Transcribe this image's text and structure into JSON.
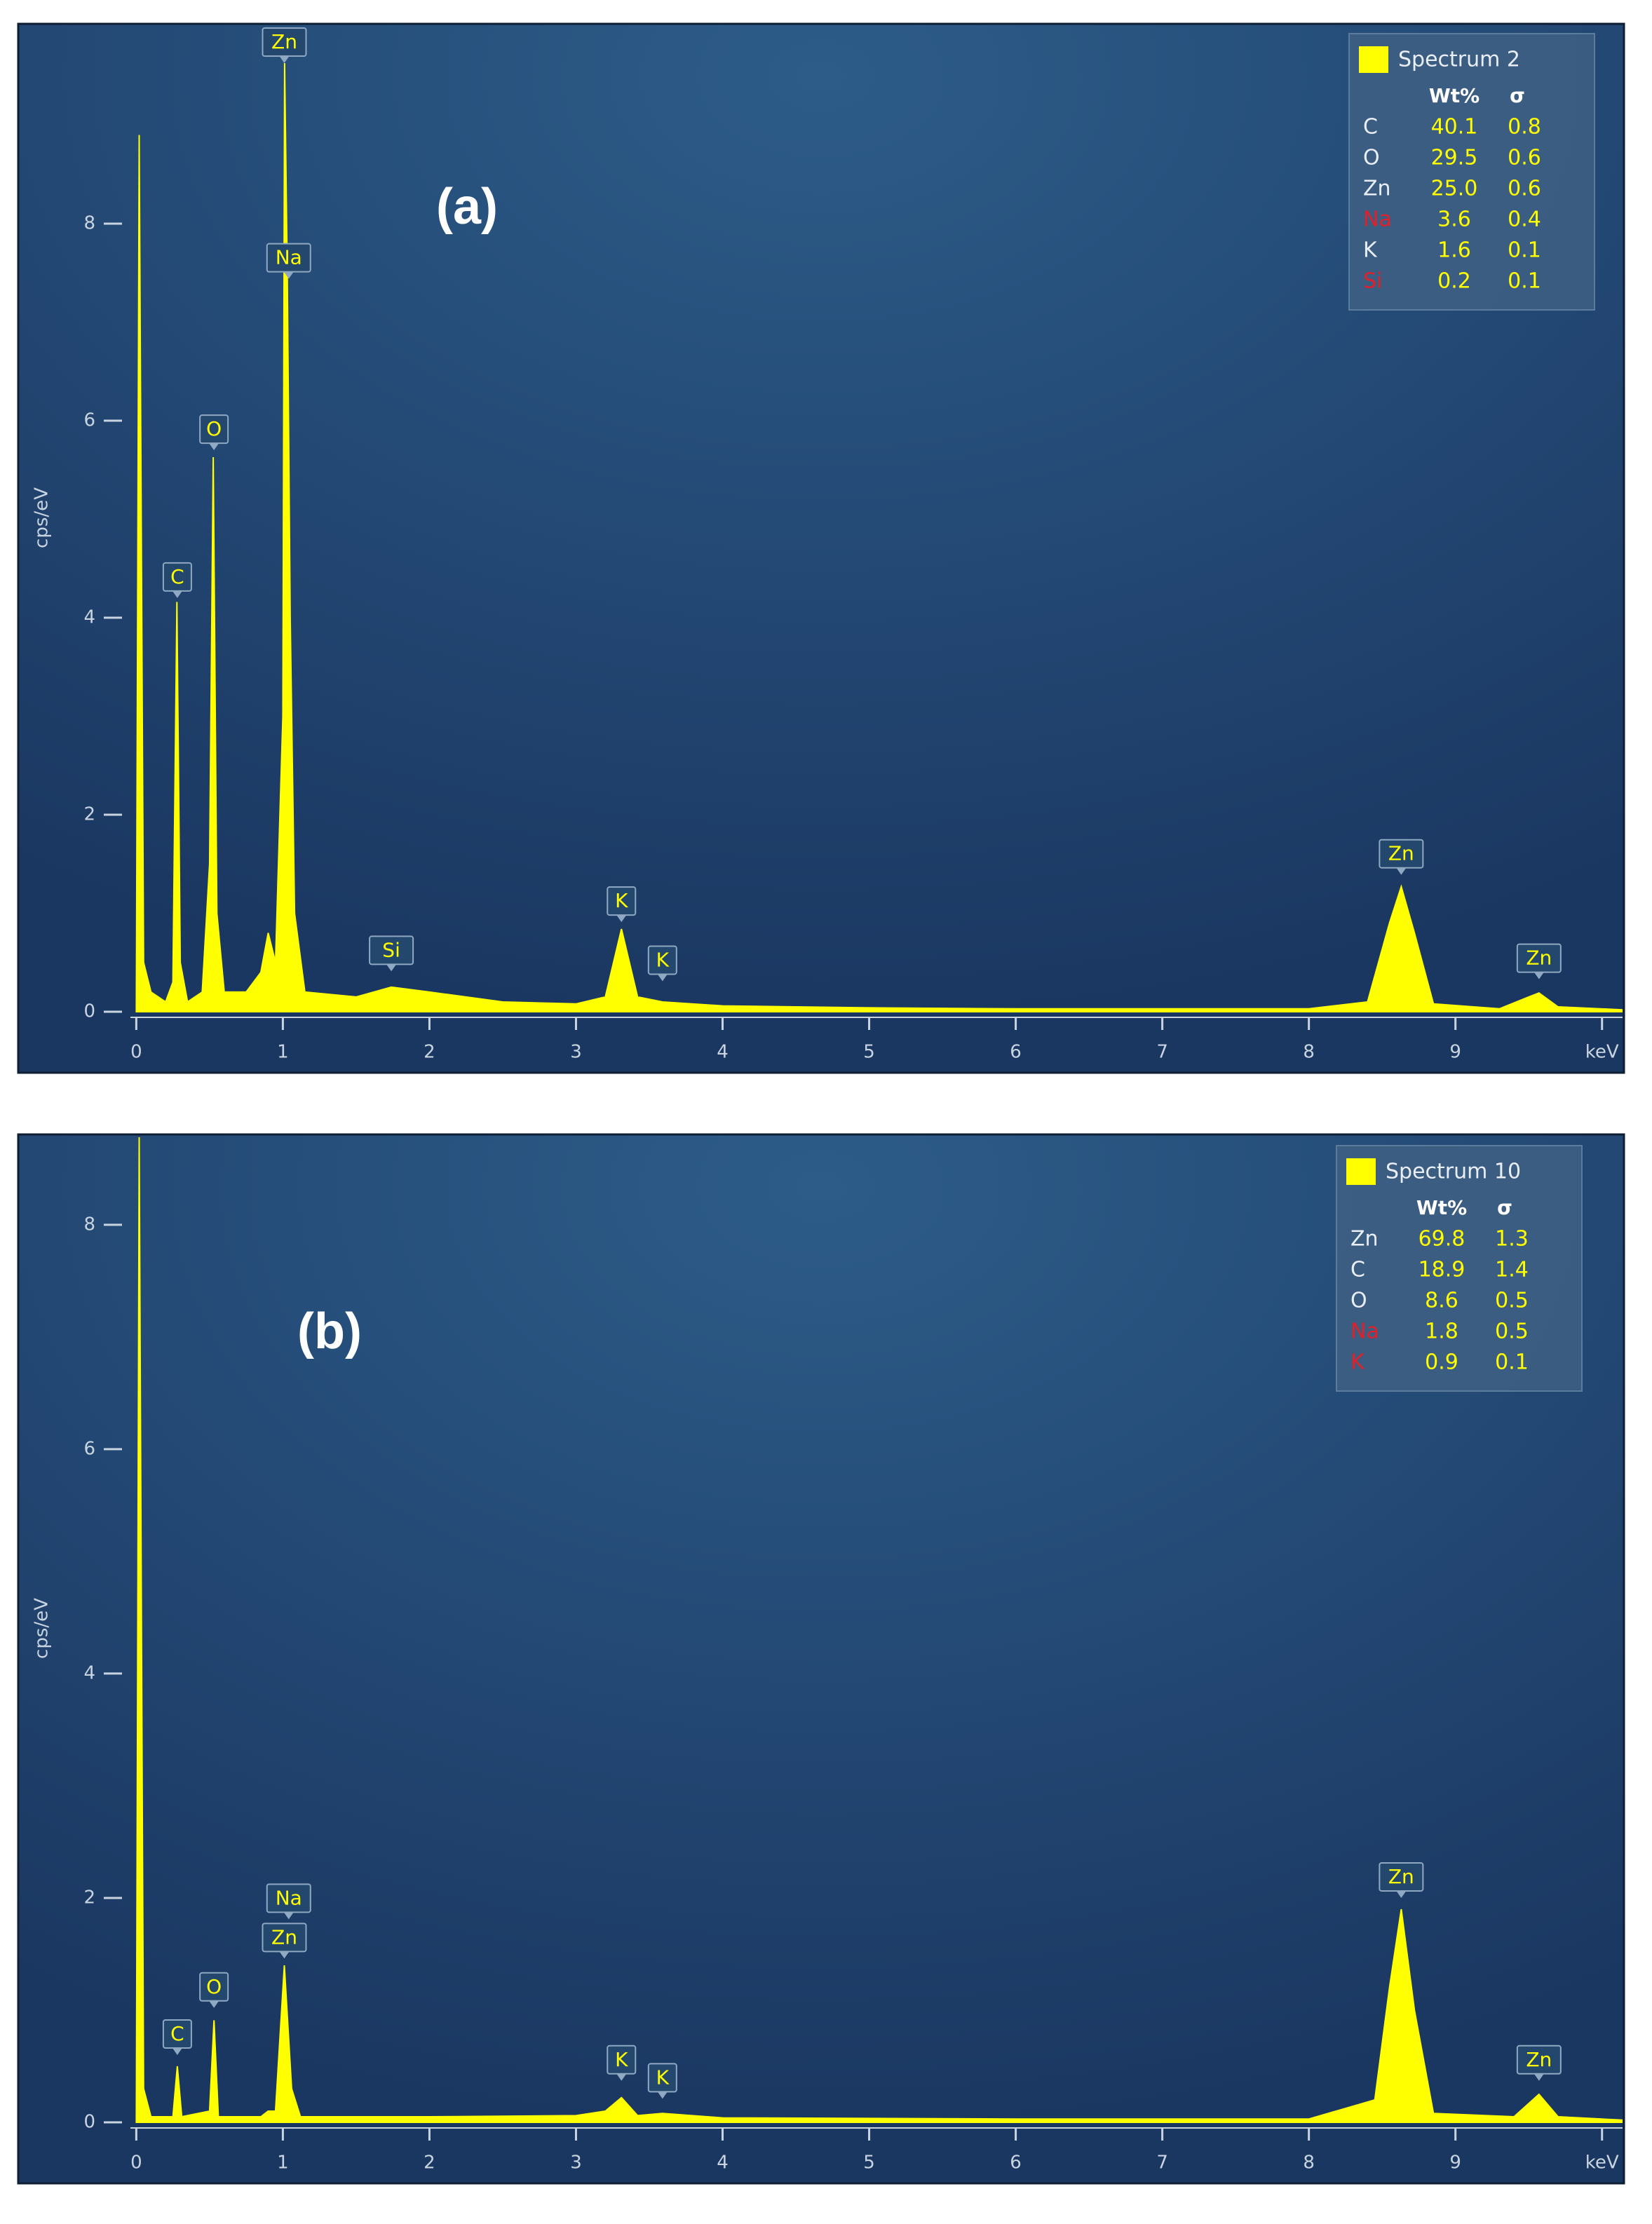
{
  "chart_data": [
    {
      "type": "area",
      "panel_label": "(a)",
      "y_label": "cps/eV",
      "color": "#ffff00",
      "xlim": [
        -0.04,
        10.14
      ],
      "ylim": [
        0,
        10
      ],
      "xticks": [
        0,
        1,
        2,
        3,
        4,
        5,
        6,
        7,
        8,
        9,
        {
          "value": 10,
          "label": "keV"
        }
      ],
      "yticks": [
        0,
        2,
        4,
        6,
        8
      ],
      "x": [
        0,
        0.02,
        0.05,
        0.1,
        0.2,
        0.25,
        0.277,
        0.3,
        0.35,
        0.45,
        0.5,
        0.525,
        0.55,
        0.6,
        0.75,
        0.85,
        0.9,
        0.95,
        1.0,
        1.012,
        1.03,
        1.05,
        1.08,
        1.15,
        1.5,
        1.74,
        2.0,
        2.5,
        3.0,
        3.2,
        3.31,
        3.42,
        3.59,
        4.0,
        5,
        6,
        7,
        8,
        8.4,
        8.55,
        8.63,
        8.72,
        8.85,
        9.3,
        9.5,
        9.57,
        9.7,
        10.14
      ],
      "values": [
        0,
        8.9,
        0.5,
        0.2,
        0.1,
        0.3,
        4.16,
        0.5,
        0.1,
        0.2,
        1.5,
        5.63,
        1.0,
        0.2,
        0.2,
        0.4,
        0.8,
        0.5,
        3.0,
        9.63,
        7.5,
        4.0,
        1.0,
        0.2,
        0.15,
        0.25,
        0.2,
        0.1,
        0.08,
        0.15,
        0.84,
        0.15,
        0.1,
        0.06,
        0.04,
        0.03,
        0.03,
        0.03,
        0.1,
        0.9,
        1.27,
        0.8,
        0.08,
        0.03,
        0.15,
        0.19,
        0.05,
        0.02
      ],
      "annotations": [
        {
          "label": "Zn",
          "x": 1.01,
          "y": 9.63
        },
        {
          "label": "Na",
          "x": 1.04,
          "y": 7.44
        },
        {
          "label": "O",
          "x": 0.53,
          "y": 5.7
        },
        {
          "label": "C",
          "x": 0.28,
          "y": 4.2
        },
        {
          "label": "Si",
          "x": 1.74,
          "y": 0.41
        },
        {
          "label": "K",
          "x": 3.31,
          "y": 0.91
        },
        {
          "label": "K",
          "x": 3.59,
          "y": 0.31
        },
        {
          "label": "Zn",
          "x": 8.63,
          "y": 1.39
        },
        {
          "label": "Zn",
          "x": 9.57,
          "y": 0.33
        }
      ],
      "legend": {
        "name": "Spectrum 2",
        "columns": [
          "Wt%",
          "σ"
        ],
        "rows": [
          {
            "element": "C",
            "wt": "40.1",
            "sigma": "0.8"
          },
          {
            "element": "O",
            "wt": "29.5",
            "sigma": "0.6"
          },
          {
            "element": "Zn",
            "wt": "25.0",
            "sigma": "0.6"
          },
          {
            "element": "Na",
            "wt": "3.6",
            "sigma": "0.4",
            "color": "#e0202a"
          },
          {
            "element": "K",
            "wt": "1.6",
            "sigma": "0.1"
          },
          {
            "element": "Si",
            "wt": "0.2",
            "sigma": "0.1",
            "color": "#e0202a"
          }
        ]
      }
    },
    {
      "type": "area",
      "panel_label": "(b)",
      "y_label": "cps/eV",
      "color": "#ffff00",
      "xlim": [
        -0.04,
        10.14
      ],
      "ylim": [
        0,
        8.78
      ],
      "xticks": [
        0,
        1,
        2,
        3,
        4,
        5,
        6,
        7,
        8,
        9,
        {
          "value": 10,
          "label": "keV"
        }
      ],
      "yticks": [
        0,
        2,
        4,
        6,
        8
      ],
      "x": [
        0,
        0.02,
        0.05,
        0.1,
        0.25,
        0.28,
        0.31,
        0.5,
        0.53,
        0.56,
        0.85,
        0.9,
        0.95,
        1.01,
        1.06,
        1.12,
        2.0,
        3.0,
        3.2,
        3.31,
        3.42,
        3.59,
        4,
        6,
        8,
        8.45,
        8.55,
        8.63,
        8.72,
        8.85,
        9.4,
        9.57,
        9.7,
        10.14
      ],
      "values": [
        0,
        8.78,
        0.3,
        0.05,
        0.05,
        0.5,
        0.05,
        0.1,
        0.91,
        0.05,
        0.05,
        0.1,
        0.1,
        1.4,
        0.3,
        0.05,
        0.05,
        0.06,
        0.1,
        0.22,
        0.06,
        0.08,
        0.04,
        0.03,
        0.03,
        0.2,
        1.2,
        1.9,
        1.0,
        0.08,
        0.05,
        0.25,
        0.05,
        0.02
      ],
      "annotations": [
        {
          "label": "C",
          "x": 0.28,
          "y": 0.6
        },
        {
          "label": "O",
          "x": 0.53,
          "y": 1.02
        },
        {
          "label": "Zn",
          "x": 1.01,
          "y": 1.46
        },
        {
          "label": "Na",
          "x": 1.04,
          "y": 1.81
        },
        {
          "label": "K",
          "x": 3.31,
          "y": 0.37
        },
        {
          "label": "K",
          "x": 3.59,
          "y": 0.21
        },
        {
          "label": "Zn",
          "x": 8.63,
          "y": 2.0
        },
        {
          "label": "Zn",
          "x": 9.57,
          "y": 0.37
        }
      ],
      "legend": {
        "name": "Spectrum 10",
        "columns": [
          "Wt%",
          "σ"
        ],
        "rows": [
          {
            "element": "Zn",
            "wt": "69.8",
            "sigma": "1.3"
          },
          {
            "element": "C",
            "wt": "18.9",
            "sigma": "1.4"
          },
          {
            "element": "O",
            "wt": "8.6",
            "sigma": "0.5"
          },
          {
            "element": "Na",
            "wt": "1.8",
            "sigma": "0.5",
            "color": "#e0202a"
          },
          {
            "element": "K",
            "wt": "0.9",
            "sigma": "0.1",
            "color": "#e0202a"
          }
        ]
      }
    }
  ]
}
